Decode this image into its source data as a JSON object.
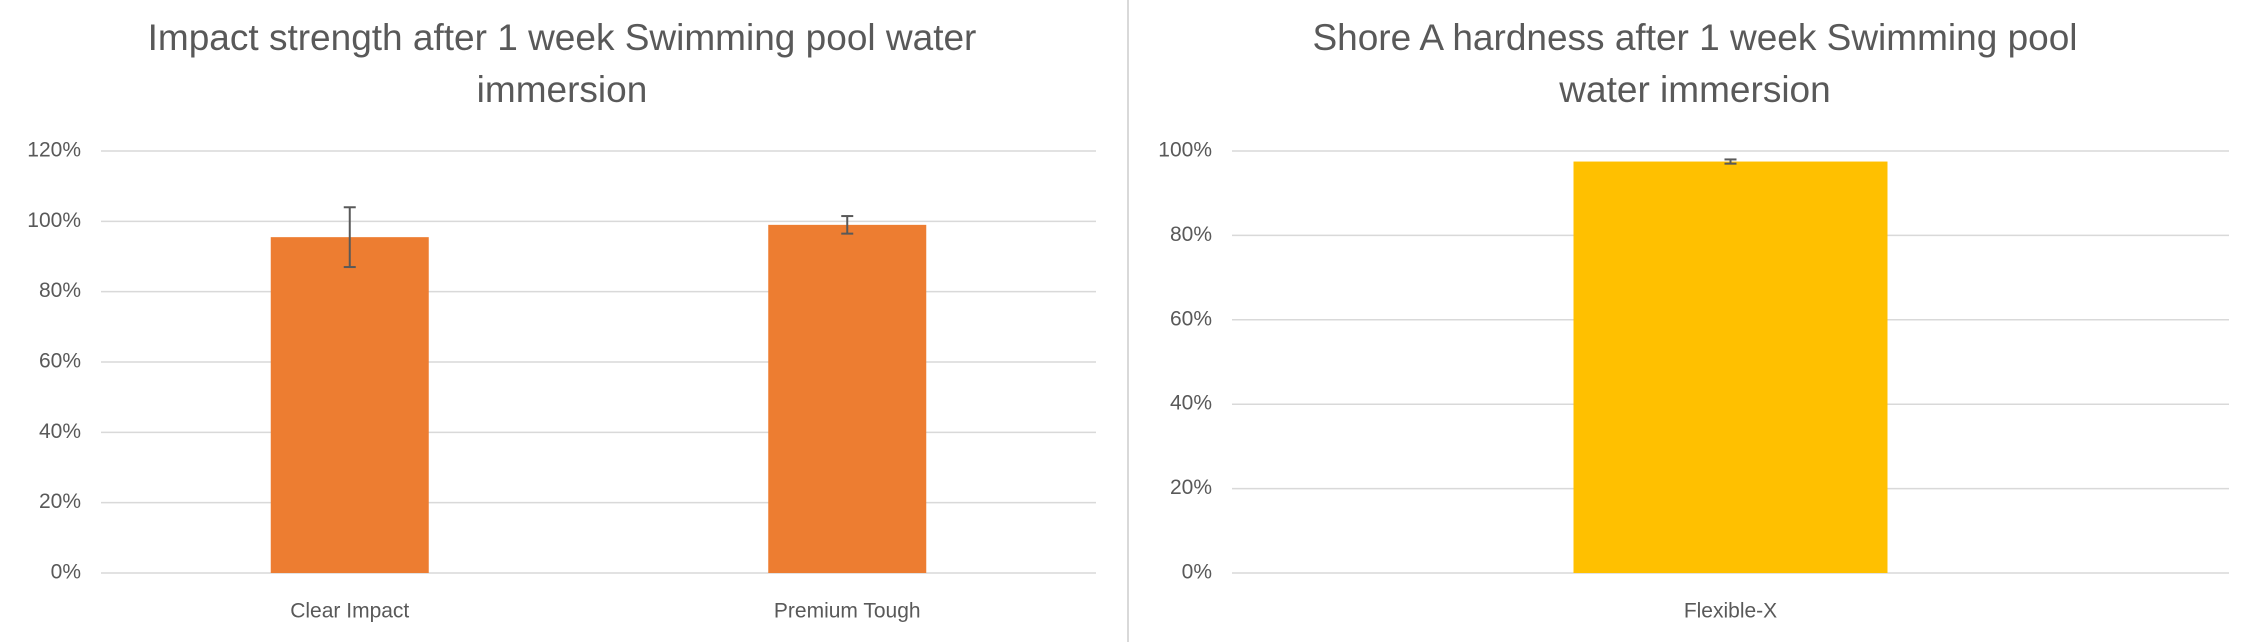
{
  "chart_data": [
    {
      "type": "bar",
      "title": "Impact strength after 1 week Swimming pool water immersion",
      "categories": [
        "Clear Impact",
        "Premium Tough"
      ],
      "values": [
        95.5,
        99
      ],
      "errors": [
        8.5,
        2.5
      ],
      "color": "#ed7d31",
      "ylim": [
        0,
        120
      ],
      "yticks": [
        {
          "value": 0,
          "label": "0%"
        },
        {
          "value": 20,
          "label": "20%"
        },
        {
          "value": 40,
          "label": "40%"
        },
        {
          "value": 60,
          "label": "60%"
        },
        {
          "value": 80,
          "label": "80%"
        },
        {
          "value": 100,
          "label": "100%"
        },
        {
          "value": 120,
          "label": "120%"
        }
      ],
      "grid": true
    },
    {
      "type": "bar",
      "title": "Shore A hardness after 1 week Swimming pool water immersion",
      "categories": [
        "Flexible-X"
      ],
      "values": [
        97.5
      ],
      "errors": [
        0.5
      ],
      "color": "#ffc000",
      "ylim": [
        0,
        100
      ],
      "yticks": [
        {
          "value": 0,
          "label": "0%"
        },
        {
          "value": 20,
          "label": "20%"
        },
        {
          "value": 40,
          "label": "40%"
        },
        {
          "value": 60,
          "label": "60%"
        },
        {
          "value": 80,
          "label": "80%"
        },
        {
          "value": 100,
          "label": "100%"
        }
      ],
      "grid": true
    }
  ]
}
